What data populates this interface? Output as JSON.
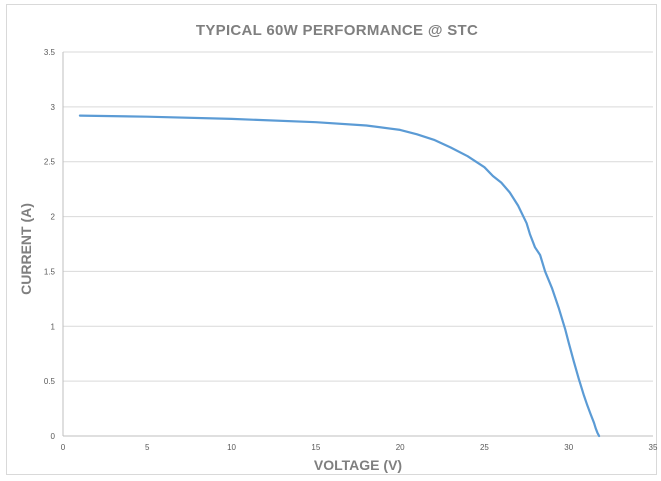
{
  "chart_data": {
    "type": "line",
    "title": "TYPICAL 60W PERFORMANCE @ STC",
    "xlabel": "VOLTAGE (V)",
    "ylabel": "CURRENT (A)",
    "xlim": [
      0,
      35
    ],
    "ylim": [
      0,
      3.5
    ],
    "x_ticks": [
      0,
      5,
      10,
      15,
      20,
      25,
      30,
      35
    ],
    "y_ticks": [
      0,
      0.5,
      1,
      1.5,
      2,
      2.5,
      3,
      3.5
    ],
    "x_tick_labels": [
      "0",
      "5",
      "10",
      "15",
      "20",
      "25",
      "30",
      "35"
    ],
    "y_tick_labels": [
      "0",
      "0.5",
      "1",
      "1.5",
      "2",
      "2.5",
      "3",
      "3.5"
    ],
    "grid": "horizontal",
    "legend": "none",
    "series": [
      {
        "color": "#5b9bd5",
        "x": [
          1.0,
          5,
          10,
          15,
          18,
          20,
          21,
          22,
          23,
          24,
          25,
          25.5,
          26,
          26.5,
          27,
          27.5,
          27.7,
          28,
          28.3,
          28.6,
          29,
          29.4,
          29.8,
          30,
          30.3,
          30.6,
          30.9,
          31.1,
          31.3,
          31.5,
          31.6,
          31.7,
          31.8
        ],
        "y": [
          2.92,
          2.91,
          2.89,
          2.86,
          2.83,
          2.79,
          2.75,
          2.7,
          2.63,
          2.55,
          2.45,
          2.37,
          2.31,
          2.22,
          2.1,
          1.94,
          1.84,
          1.72,
          1.65,
          1.5,
          1.35,
          1.17,
          0.97,
          0.85,
          0.68,
          0.52,
          0.37,
          0.28,
          0.2,
          0.12,
          0.07,
          0.03,
          0.0
        ]
      }
    ]
  }
}
